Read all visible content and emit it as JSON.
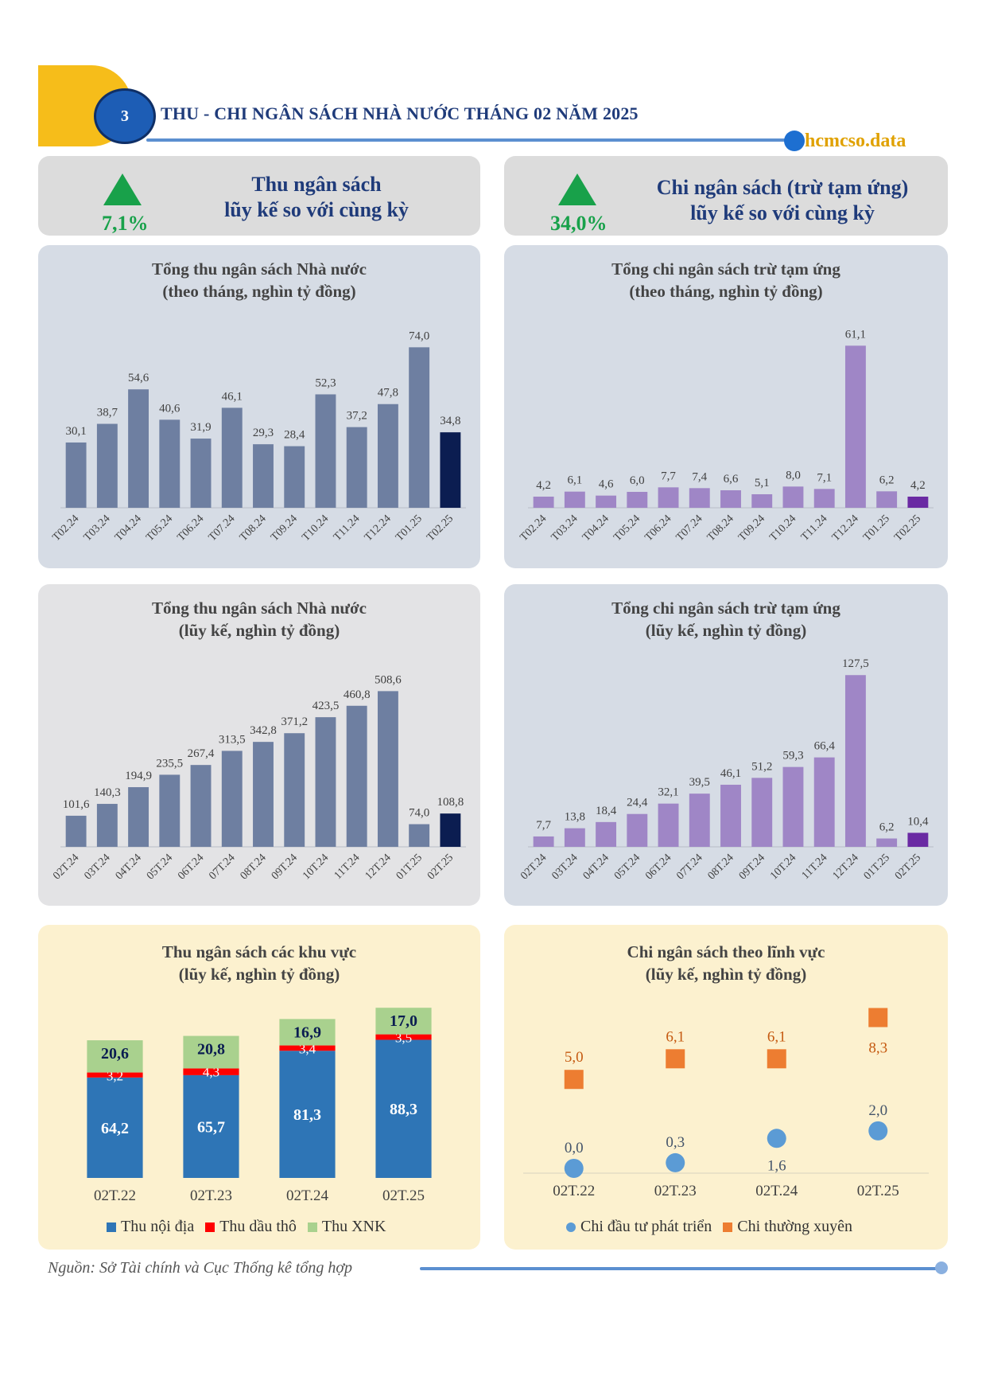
{
  "header": {
    "number": "3",
    "title": "THU - CHI NGÂN SÁCH NHÀ NƯỚC THÁNG 02 NĂM 2025",
    "brand": "hcmcso.data"
  },
  "kpi": {
    "revenue": {
      "percent": "7,1%",
      "title_line1": "Thu ngân sách",
      "title_line2": "lũy kế so với cùng kỳ"
    },
    "spending": {
      "percent": "34,0%",
      "title_line1": "Chi ngân sách (trừ tạm ứng)",
      "title_line2": "lũy kế so với cùng kỳ"
    }
  },
  "colors": {
    "revenue_bar": "#6e7fa1",
    "revenue_highlight": "#0b1d51",
    "spending_bar": "#9f86c6",
    "spending_highlight": "#6a2aa3",
    "domestic": "#2e75b6",
    "crude_oil": "#ff0000",
    "import_export": "#a9d18e",
    "investment": "#5b9bd5",
    "recurrent": "#ed7d31",
    "up_arrow": "#18a14a"
  },
  "footer": {
    "source": "Nguồn: Sở Tài chính và Cục Thống kê tổng hợp"
  },
  "chart_data": [
    {
      "type": "bar",
      "title_line1": "Tổng thu ngân sách Nhà nước",
      "title_line2": "(theo tháng, nghìn tỷ đồng)",
      "categories": [
        "T02.24",
        "T03.24",
        "T04.24",
        "T05.24",
        "T06.24",
        "T07.24",
        "T08.24",
        "T09.24",
        "T10.24",
        "T11.24",
        "T12.24",
        "T01.25",
        "T02.25"
      ],
      "values": [
        30.1,
        38.7,
        54.6,
        40.6,
        31.9,
        46.1,
        29.3,
        28.4,
        52.3,
        37.2,
        47.8,
        74.0,
        34.8
      ],
      "labels": [
        "30,1",
        "38,7",
        "54,6",
        "40,6",
        "31,9",
        "46,1",
        "29,3",
        "28,4",
        "52,3",
        "37,2",
        "47,8",
        "74,0",
        "34,8"
      ],
      "highlight_index": 12,
      "ylim": [
        0,
        80
      ]
    },
    {
      "type": "bar",
      "title_line1": "Tổng chi ngân sách trừ tạm ứng",
      "title_line2": "(theo tháng, nghìn tỷ đồng)",
      "categories": [
        "T02.24",
        "T03.24",
        "T04.24",
        "T05.24",
        "T06.24",
        "T07.24",
        "T08.24",
        "T09.24",
        "T10.24",
        "T11.24",
        "T12.24",
        "T01.25",
        "T02.25"
      ],
      "values": [
        4.2,
        6.1,
        4.6,
        6.0,
        7.7,
        7.4,
        6.6,
        5.1,
        8.0,
        7.1,
        61.1,
        6.2,
        4.2
      ],
      "labels": [
        "4,2",
        "6,1",
        "4,6",
        "6,0",
        "7,7",
        "7,4",
        "6,6",
        "5,1",
        "8,0",
        "7,1",
        "61,1",
        "6,2",
        "4,2"
      ],
      "highlight_index": 12,
      "ylim": [
        0,
        66
      ]
    },
    {
      "type": "bar",
      "title_line1": "Tổng thu ngân sách Nhà nước",
      "title_line2": "(lũy kế, nghìn tỷ đồng)",
      "categories": [
        "02T.24",
        "03T.24",
        "04T.24",
        "05T.24",
        "06T.24",
        "07T.24",
        "08T.24",
        "09T.24",
        "10T.24",
        "11T.24",
        "12T.24",
        "01T.25",
        "02T.25"
      ],
      "values": [
        101.6,
        140.3,
        194.9,
        235.5,
        267.4,
        313.5,
        342.8,
        371.2,
        423.5,
        460.8,
        508.6,
        74.0,
        108.8
      ],
      "labels": [
        "101,6",
        "140,3",
        "194,9",
        "235,5",
        "267,4",
        "313,5",
        "342,8",
        "371,2",
        "423,5",
        "460,8",
        "508,6",
        "74,0",
        "108,8"
      ],
      "highlight_index": 12,
      "ylim": [
        0,
        520
      ]
    },
    {
      "type": "bar",
      "title_line1": "Tổng chi ngân sách trừ tạm ứng",
      "title_line2": "(lũy kế, nghìn tỷ đồng)",
      "categories": [
        "02T.24",
        "03T.24",
        "04T.24",
        "05T.24",
        "06T.24",
        "07T.24",
        "08T.24",
        "09T.24",
        "10T.24",
        "11T.24",
        "12T.24",
        "01T.25",
        "02T.25"
      ],
      "values": [
        7.7,
        13.8,
        18.4,
        24.4,
        32.1,
        39.5,
        46.1,
        51.2,
        59.3,
        66.4,
        127.5,
        6.2,
        10.4
      ],
      "labels": [
        "7,7",
        "13,8",
        "18,4",
        "24,4",
        "32,1",
        "39,5",
        "46,1",
        "51,2",
        "59,3",
        "66,4",
        "127,5",
        "6,2",
        "10,4"
      ],
      "highlight_index": 12,
      "ylim": [
        0,
        130
      ]
    },
    {
      "type": "bar",
      "stacked": true,
      "title_line1": "Thu ngân sách các khu vực",
      "title_line2": "(lũy kế, nghìn tỷ đồng)",
      "categories": [
        "02T.22",
        "02T.23",
        "02T.24",
        "02T.25"
      ],
      "series": [
        {
          "name": "Thu nội địa",
          "values": [
            64.2,
            65.7,
            81.3,
            88.3
          ],
          "labels": [
            "64,2",
            "65,7",
            "81,3",
            "88,3"
          ]
        },
        {
          "name": "Thu dầu thô",
          "values": [
            3.2,
            4.3,
            3.4,
            3.5
          ],
          "labels": [
            "3,2",
            "4,3",
            "3,4",
            "3,5"
          ]
        },
        {
          "name": "Thu XNK",
          "values": [
            20.6,
            20.8,
            16.9,
            17.0
          ],
          "labels": [
            "20,6",
            "20,8",
            "16,9",
            "17,0"
          ]
        }
      ],
      "ylim": [
        0,
        115
      ]
    },
    {
      "type": "scatter",
      "title_line1": "Chi ngân sách theo lĩnh vực",
      "title_line2": "(lũy kế, nghìn tỷ đồng)",
      "categories": [
        "02T.22",
        "02T.23",
        "02T.24",
        "02T.25"
      ],
      "series": [
        {
          "name": "Chi đầu tư phát triển",
          "values": [
            0.0,
            0.3,
            1.6,
            2.0
          ],
          "labels": [
            "0,0",
            "0,3",
            "1,6",
            "2,0"
          ]
        },
        {
          "name": "Chi thường xuyên",
          "values": [
            5.0,
            6.1,
            6.1,
            8.3
          ],
          "labels": [
            "5,0",
            "6,1",
            "6,1",
            "8,3"
          ]
        }
      ],
      "ylim": [
        0,
        9
      ]
    }
  ]
}
